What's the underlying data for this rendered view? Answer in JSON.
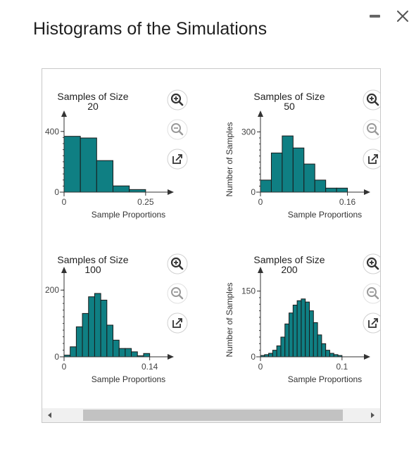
{
  "window": {
    "title": "Histograms of the Simulations",
    "minimize_icon": "minimize-icon",
    "close_icon": "close-icon"
  },
  "colors": {
    "bar_fill": "#0f7f83",
    "bar_stroke": "#1a1a1a",
    "axis": "#333333",
    "zoom_in": "#333333",
    "zoom_out": "#9a9a9a",
    "popout": "#333333"
  },
  "tools": {
    "zoom_in_icon": "zoom-in-icon",
    "zoom_out_icon": "zoom-out-icon",
    "popout_icon": "popout-icon"
  },
  "chart_data": [
    {
      "type": "bar",
      "title": "Samples of Size\n20",
      "xlabel": "Sample Proportions",
      "ylabel": "",
      "xlim": [
        0,
        0.3
      ],
      "ylim": [
        0,
        450
      ],
      "x_ticks": [
        "0",
        "0.25"
      ],
      "y_ticks": [
        "0",
        "400"
      ],
      "bin_edges": [
        0,
        0.05,
        0.1,
        0.15,
        0.2,
        0.25
      ],
      "values": [
        368,
        357,
        208,
        41,
        17
      ]
    },
    {
      "type": "bar",
      "title": "Samples of Size\n50",
      "xlabel": "Sample Proportions",
      "ylabel": "Number of Samples",
      "xlim": [
        0,
        0.18
      ],
      "ylim": [
        0,
        340
      ],
      "x_ticks": [
        "0",
        "0.16"
      ],
      "y_ticks": [
        "0",
        "300"
      ],
      "bin_edges": [
        0,
        0.02,
        0.04,
        0.06,
        0.08,
        0.1,
        0.12,
        0.14,
        0.16
      ],
      "values": [
        60,
        195,
        280,
        220,
        140,
        60,
        20,
        20
      ]
    },
    {
      "type": "bar",
      "title": "Samples of Size\n100",
      "xlabel": "Sample Proportions",
      "ylabel": "",
      "xlim": [
        0,
        0.16
      ],
      "ylim": [
        0,
        230
      ],
      "x_ticks": [
        "0",
        "0.14"
      ],
      "y_ticks": [
        "0",
        "200"
      ],
      "bin_edges": [
        0,
        0.01,
        0.02,
        0.03,
        0.04,
        0.05,
        0.06,
        0.07,
        0.08,
        0.09,
        0.1,
        0.11,
        0.12,
        0.13,
        0.14
      ],
      "values": [
        5,
        30,
        90,
        130,
        180,
        190,
        170,
        95,
        50,
        25,
        25,
        15,
        3,
        10
      ]
    },
    {
      "type": "bar",
      "title": "Samples of Size\n200",
      "xlabel": "Sample Proportions",
      "ylabel": "Number of Samples",
      "xlim": [
        0,
        0.12
      ],
      "ylim": [
        0,
        175
      ],
      "x_ticks": [
        "0",
        "0.1"
      ],
      "y_ticks": [
        "0",
        "150"
      ],
      "bin_edges": [
        0,
        0.005,
        0.01,
        0.015,
        0.02,
        0.025,
        0.03,
        0.035,
        0.04,
        0.045,
        0.05,
        0.055,
        0.06,
        0.065,
        0.07,
        0.075,
        0.08,
        0.085,
        0.09,
        0.095,
        0.1
      ],
      "values": [
        3,
        5,
        8,
        15,
        25,
        45,
        75,
        100,
        118,
        128,
        132,
        125,
        105,
        78,
        50,
        30,
        15,
        8,
        5,
        3
      ]
    }
  ]
}
